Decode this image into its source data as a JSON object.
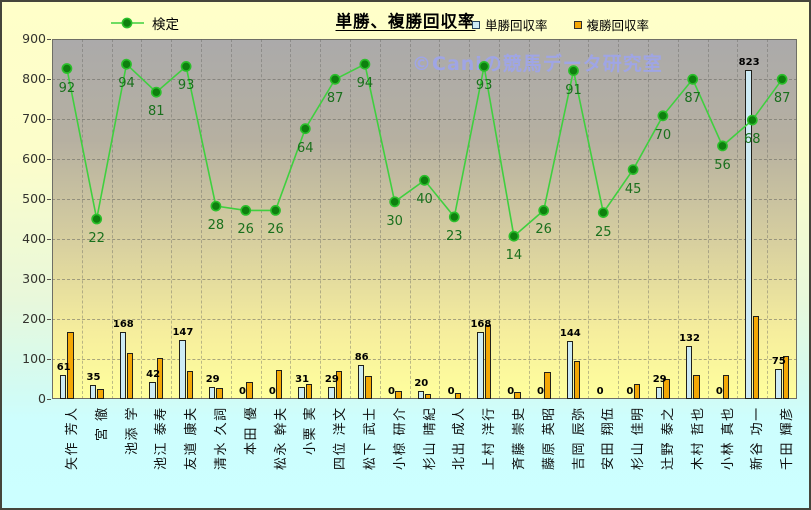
{
  "header": {
    "title": "単勝、複勝回収率",
    "legend_line": "検定",
    "legend_bar_win": "単勝回収率",
    "legend_bar_place": "複勝回収率"
  },
  "watermark": "©Caniの競馬データ研究室",
  "colors": {
    "line": "#3FD03F",
    "marker_fill": "#0E800E",
    "marker_stroke": "#2BBF2B",
    "bar_win_fill": "#CDEBF5",
    "bar_place_fill": "#F4A705",
    "bar_border": "#20201A",
    "plot_top": "#ABAAAA",
    "plot_bottom": "#FFFF9D",
    "background_top": "#FFFFCC",
    "background_bottom": "#CCFFFF",
    "watermark_color": "#9FA5E5",
    "dot_label_color": "#1A701D"
  },
  "chart_data": {
    "type": "bar",
    "subtype": "combo-bar-line",
    "title": "単勝、複勝回収率",
    "categories": [
      "矢作 芳人",
      "宮 徹",
      "池添 学",
      "池江 泰寿",
      "友道 康夫",
      "清水 久詞",
      "本田 優",
      "松永 幹夫",
      "小栗 実",
      "四位 洋文",
      "松下 武士",
      "小椋 研介",
      "杉山 晴紀",
      "北出 成人",
      "上村 洋行",
      "斉藤 崇史",
      "藤原 英昭",
      "吉岡 辰弥",
      "安田 翔伍",
      "杉山 佳明",
      "辻野 泰之",
      "木村 哲也",
      "小林 真也",
      "新谷 功一",
      "千田 輝彦"
    ],
    "series": [
      {
        "name": "検定",
        "type": "line",
        "labels_shown": true,
        "values": [
          92,
          22,
          94,
          81,
          93,
          28,
          26,
          26,
          64,
          87,
          94,
          30,
          40,
          23,
          93,
          14,
          26,
          91,
          25,
          45,
          70,
          87,
          56,
          68,
          87
        ]
      },
      {
        "name": "単勝回収率",
        "type": "bar",
        "labels_shown": true,
        "values": [
          61,
          35,
          168,
          42,
          147,
          29,
          0,
          0,
          31,
          29,
          86,
          0,
          20,
          0,
          168,
          0,
          0,
          144,
          0,
          0,
          29,
          132,
          0,
          823,
          75
        ]
      },
      {
        "name": "複勝回収率",
        "type": "bar",
        "labels_shown": false,
        "values": [
          168,
          25,
          115,
          103,
          71,
          28,
          42,
          73,
          38,
          70,
          57,
          20,
          12,
          15,
          185,
          18,
          68,
          95,
          0,
          38,
          50,
          61,
          59,
          208,
          108
        ]
      }
    ],
    "y_axis": {
      "min": 0,
      "max": 900,
      "step": 100,
      "tick_labels": [
        "900",
        "800",
        "700",
        "600",
        "500",
        "400",
        "300",
        "200",
        "100",
        "0"
      ]
    },
    "grid": true,
    "legend_position": "top"
  }
}
